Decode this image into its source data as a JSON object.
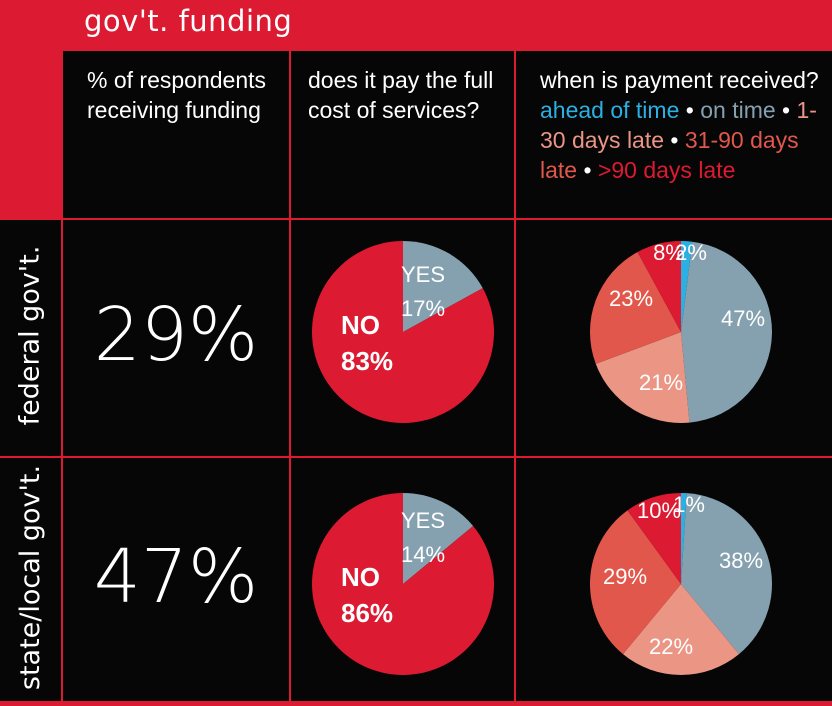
{
  "title": "gov't. funding",
  "columns": {
    "col1": [
      "% of respondents",
      "receiving funding"
    ],
    "col2": [
      "does it pay the full",
      "cost of services?"
    ],
    "col3_title": "when is payment received?",
    "legend": [
      {
        "label": "ahead of time",
        "color": "#2ab0e2"
      },
      {
        "label": "on time",
        "color": "#85a1b0"
      },
      {
        "label": "1-30 days late",
        "color": "#eb9585"
      },
      {
        "label": "31-90 days late",
        "color": "#e2574b"
      },
      {
        "label": ">90 days late",
        "color": "#dc1a32"
      }
    ],
    "separator": "•"
  },
  "rows": [
    {
      "label": "federal gov't.",
      "percent": "29%"
    },
    {
      "label": "state/local gov't.",
      "percent": "47%"
    }
  ],
  "chart_data": [
    {
      "type": "pie",
      "row": "federal gov't.",
      "categories": [
        "YES",
        "NO"
      ],
      "values": [
        17,
        83
      ],
      "labels": [
        "17%",
        "83%"
      ],
      "colors": [
        "#85a1b0",
        "#dc1a32"
      ]
    },
    {
      "type": "pie",
      "row": "federal gov't.",
      "categories": [
        "ahead of time",
        "on time",
        "1-30 days late",
        "31-90 days late",
        ">90 days late"
      ],
      "values": [
        2,
        47,
        21,
        23,
        8
      ],
      "labels": [
        "2%",
        "47%",
        "21%",
        "23%",
        "8%"
      ],
      "colors": [
        "#2ab0e2",
        "#85a1b0",
        "#eb9585",
        "#e2574b",
        "#dc1a32"
      ]
    },
    {
      "type": "pie",
      "row": "state/local gov't.",
      "categories": [
        "YES",
        "NO"
      ],
      "values": [
        14,
        86
      ],
      "labels": [
        "14%",
        "86%"
      ],
      "colors": [
        "#85a1b0",
        "#dc1a32"
      ]
    },
    {
      "type": "pie",
      "row": "state/local gov't.",
      "categories": [
        "ahead of time",
        "on time",
        "1-30 days late",
        "31-90 days late",
        ">90 days late"
      ],
      "values": [
        1,
        38,
        22,
        29,
        10
      ],
      "labels": [
        "1%",
        "38%",
        "22%",
        "29%",
        "10%"
      ],
      "colors": [
        "#2ab0e2",
        "#85a1b0",
        "#eb9585",
        "#e2574b",
        "#dc1a32"
      ]
    }
  ]
}
